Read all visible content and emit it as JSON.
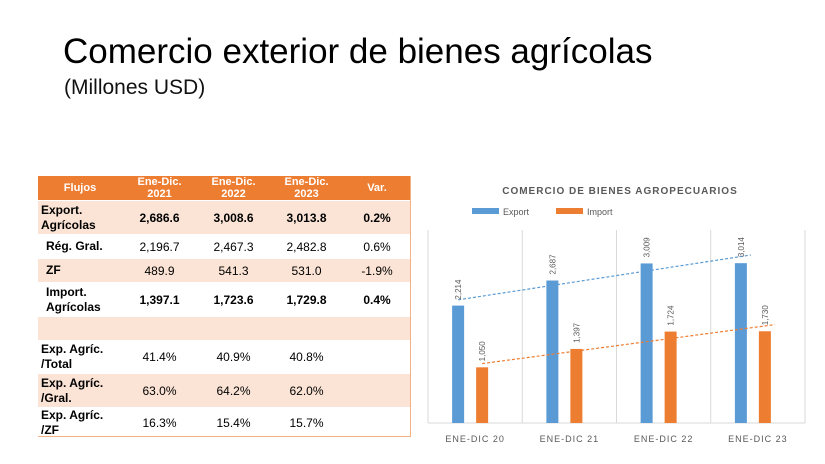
{
  "slide": {
    "title": "Comercio exterior de bienes agrícolas",
    "subtitle": "(Millones USD)"
  },
  "table": {
    "headers": [
      "Flujos",
      "Ene-Dic. 2021",
      "Ene-Dic. 2022",
      "Ene-Dic. 2023",
      "Var."
    ],
    "rows": [
      {
        "label": "Export. Agrícolas",
        "v2021": "2,686.6",
        "v2022": "3,008.6",
        "v2023": "3,013.8",
        "var": "0.2%"
      },
      {
        "label": "Rég. Gral.",
        "v2021": "2,196.7",
        "v2022": "2,467.3",
        "v2023": "2,482.8",
        "var": "0.6%"
      },
      {
        "label": "ZF",
        "v2021": "489.9",
        "v2022": "541.3",
        "v2023": "531.0",
        "var": "-1.9%"
      },
      {
        "label": "Import. Agrícolas",
        "v2021": "1,397.1",
        "v2022": "1,723.6",
        "v2023": "1,729.8",
        "var": "0.4%"
      },
      {
        "label": "",
        "v2021": "",
        "v2022": "",
        "v2023": "",
        "var": ""
      },
      {
        "label": "Exp. Agríc. /Total",
        "v2021": "41.4%",
        "v2022": "40.9%",
        "v2023": "40.8%",
        "var": ""
      },
      {
        "label": "Exp. Agríc. /Gral.",
        "v2021": "63.0%",
        "v2022": "64.2%",
        "v2023": "62.0%",
        "var": ""
      },
      {
        "label": "Exp. Agríc. /ZF",
        "v2021": "16.3%",
        "v2022": "15.4%",
        "v2023": "15.7%",
        "var": ""
      }
    ]
  },
  "colors": {
    "export": "#5b9bd5",
    "import": "#ed7d31",
    "header_bg": "#ed7d31",
    "band_bg": "#fbe4d5"
  },
  "chart_data": {
    "type": "bar",
    "title": "COMERCIO DE BIENES AGROPECUARIOS",
    "categories": [
      "ENE-DIC 20",
      "ENE-DIC 21",
      "ENE-DIC 22",
      "ENE-DIC 23"
    ],
    "series": [
      {
        "name": "Export",
        "values": [
          2214,
          2687,
          3009,
          3014
        ],
        "labels": [
          "2,214",
          "2,687",
          "3,009",
          "3,014"
        ]
      },
      {
        "name": "Import",
        "values": [
          1050,
          1397,
          1724,
          1730
        ],
        "labels": [
          "1,050",
          "1,397",
          "1,724",
          "1,730"
        ]
      }
    ],
    "trendlines": [
      "Export",
      "Import"
    ],
    "ylim": [
      0,
      3300
    ],
    "legend": "top-left",
    "grid": "vertical"
  }
}
